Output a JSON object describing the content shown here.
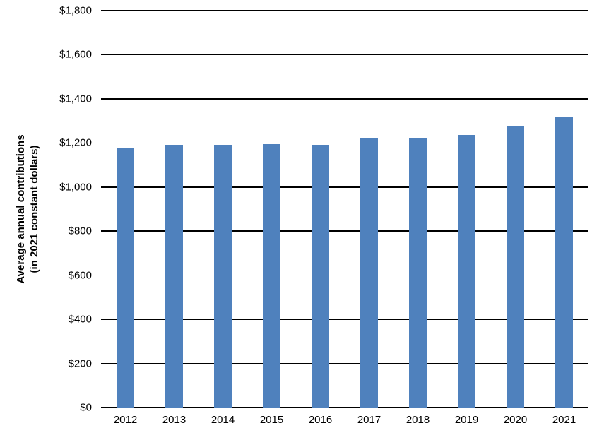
{
  "chart": {
    "y_axis_title_line1": "Average annual contributions",
    "y_axis_title_line2": "(in 2021 constant dollars)"
  },
  "chart_data": {
    "type": "bar",
    "title": "",
    "xlabel": "",
    "ylabel": "Average annual contributions (in 2021 constant dollars)",
    "categories": [
      "2012",
      "2013",
      "2014",
      "2015",
      "2016",
      "2017",
      "2018",
      "2019",
      "2020",
      "2021"
    ],
    "values": [
      1175,
      1190,
      1190,
      1195,
      1190,
      1220,
      1225,
      1235,
      1275,
      1320
    ],
    "ylim": [
      0,
      1800
    ],
    "ytick_step": 200,
    "ytick_labels": [
      "$0",
      "$200",
      "$400",
      "$600",
      "$800",
      "$1,000",
      "$1,200",
      "$1,400",
      "$1,600",
      "$1,800"
    ],
    "grid": true,
    "legend": false,
    "bar_color": "#4F81BD",
    "line_color": "#000000",
    "text_color": "#000000"
  }
}
